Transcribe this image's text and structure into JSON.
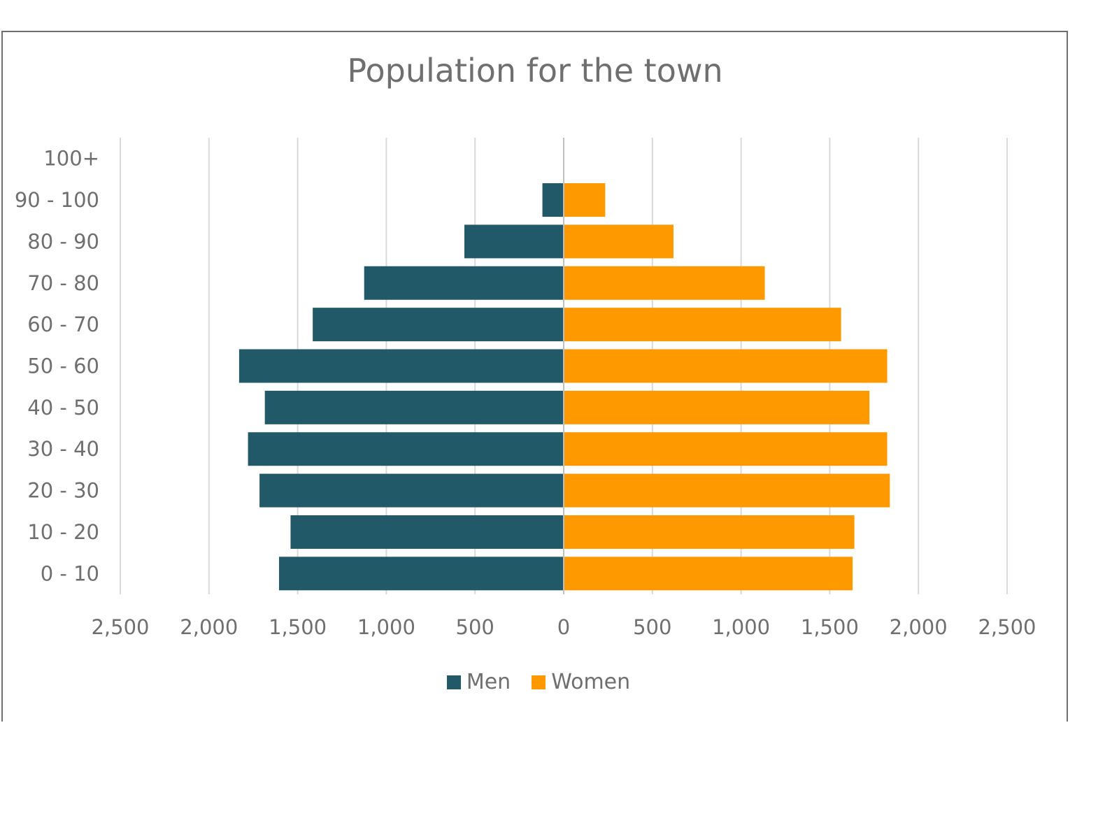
{
  "chart_data": {
    "type": "bar",
    "orientation": "horizontal",
    "stacked_diverging": true,
    "title": "Population for the town",
    "categories": [
      "0 - 10",
      "10 - 20",
      "20 - 30",
      "30 - 40",
      "40 - 50",
      "50 - 60",
      "60 - 70",
      "70 - 80",
      "80 - 90",
      "90 - 100",
      "100+"
    ],
    "series": [
      {
        "name": "Men",
        "color": "#215968",
        "values": [
          1605,
          1540,
          1715,
          1780,
          1685,
          1830,
          1415,
          1125,
          560,
          120,
          0
        ]
      },
      {
        "name": "Women",
        "color": "#FF9900",
        "values": [
          1625,
          1635,
          1835,
          1820,
          1720,
          1820,
          1560,
          1130,
          615,
          230,
          0
        ]
      }
    ],
    "xlim": [
      -2500,
      2500
    ],
    "xticks": [
      -2500,
      -2000,
      -1500,
      -1000,
      -500,
      0,
      500,
      1000,
      1500,
      2000,
      2500
    ],
    "xtick_labels": [
      "2,500",
      "2,000",
      "1,500",
      "1,000",
      "500",
      "0",
      "500",
      "1,000",
      "1,500",
      "2,000",
      "2,500"
    ],
    "grid": "vertical",
    "legend": "bottom"
  }
}
